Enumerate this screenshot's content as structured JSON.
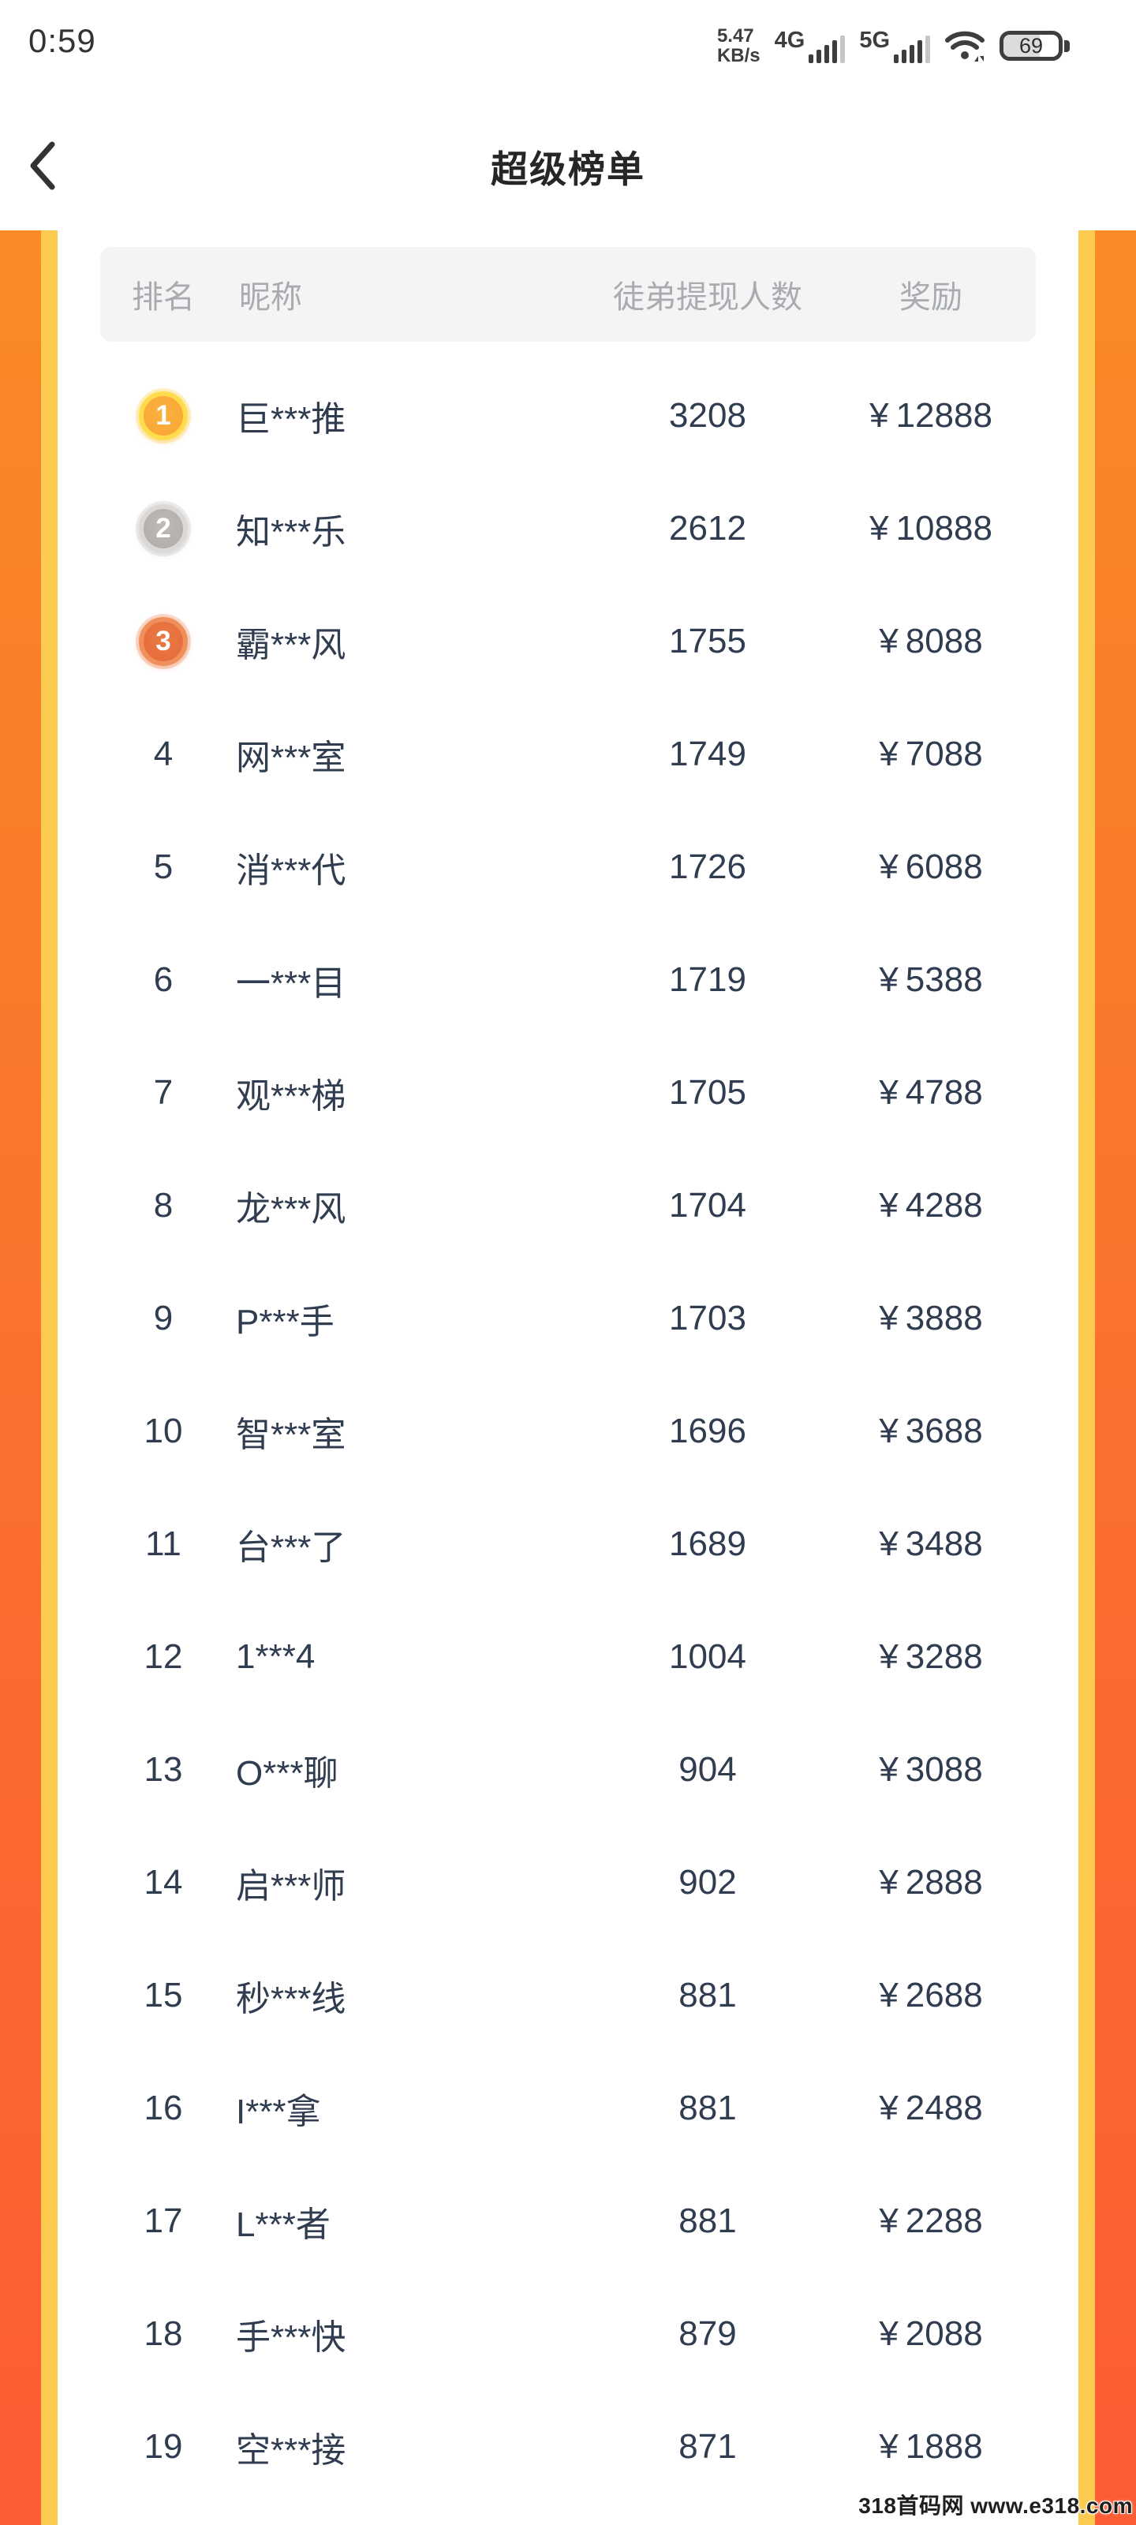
{
  "status_bar": {
    "time": "0:59",
    "net_speed_value": "5.47",
    "net_speed_unit": "KB/s",
    "sim1_label": "4G",
    "sim2_label": "5G",
    "battery_percent": "69"
  },
  "nav": {
    "title": "超级榜单"
  },
  "table": {
    "currency": "¥",
    "headers": {
      "rank": "排名",
      "nickname": "昵称",
      "count": "徒弟提现人数",
      "reward": "奖励"
    },
    "rows": [
      {
        "rank": "1",
        "nickname": "巨***推",
        "count": "3208",
        "reward": "12888",
        "medal": "gold"
      },
      {
        "rank": "2",
        "nickname": "知***乐",
        "count": "2612",
        "reward": "10888",
        "medal": "silver"
      },
      {
        "rank": "3",
        "nickname": "霸***风",
        "count": "1755",
        "reward": "8088",
        "medal": "bronze"
      },
      {
        "rank": "4",
        "nickname": "网***室",
        "count": "1749",
        "reward": "7088",
        "medal": null
      },
      {
        "rank": "5",
        "nickname": "消***代",
        "count": "1726",
        "reward": "6088",
        "medal": null
      },
      {
        "rank": "6",
        "nickname": "一***目",
        "count": "1719",
        "reward": "5388",
        "medal": null
      },
      {
        "rank": "7",
        "nickname": "观***梯",
        "count": "1705",
        "reward": "4788",
        "medal": null
      },
      {
        "rank": "8",
        "nickname": "龙***风",
        "count": "1704",
        "reward": "4288",
        "medal": null
      },
      {
        "rank": "9",
        "nickname": "P***手",
        "count": "1703",
        "reward": "3888",
        "medal": null
      },
      {
        "rank": "10",
        "nickname": "智***室",
        "count": "1696",
        "reward": "3688",
        "medal": null
      },
      {
        "rank": "11",
        "nickname": "台***了",
        "count": "1689",
        "reward": "3488",
        "medal": null
      },
      {
        "rank": "12",
        "nickname": "1***4",
        "count": "1004",
        "reward": "3288",
        "medal": null
      },
      {
        "rank": "13",
        "nickname": "O***聊",
        "count": "904",
        "reward": "3088",
        "medal": null
      },
      {
        "rank": "14",
        "nickname": "启***师",
        "count": "902",
        "reward": "2888",
        "medal": null
      },
      {
        "rank": "15",
        "nickname": "秒***线",
        "count": "881",
        "reward": "2688",
        "medal": null
      },
      {
        "rank": "16",
        "nickname": "I***拿",
        "count": "881",
        "reward": "2488",
        "medal": null
      },
      {
        "rank": "17",
        "nickname": "L***者",
        "count": "881",
        "reward": "2288",
        "medal": null
      },
      {
        "rank": "18",
        "nickname": "手***快",
        "count": "879",
        "reward": "2088",
        "medal": null
      },
      {
        "rank": "19",
        "nickname": "空***接",
        "count": "871",
        "reward": "1888",
        "medal": null
      }
    ]
  },
  "watermark": {
    "text": "318首码网 www.e318.com"
  },
  "colors": {
    "edge_orange_top": "#F98A27",
    "edge_orange_bottom": "#FB5C34",
    "edge_yellow": "#FBCA4F",
    "header_bg": "#F4F4F5",
    "header_text": "#A8ABB0",
    "row_text": "#303C4F",
    "medal_gold": "#F9A838",
    "medal_silver": "#B7B1AE",
    "medal_bronze": "#E66F3D"
  }
}
